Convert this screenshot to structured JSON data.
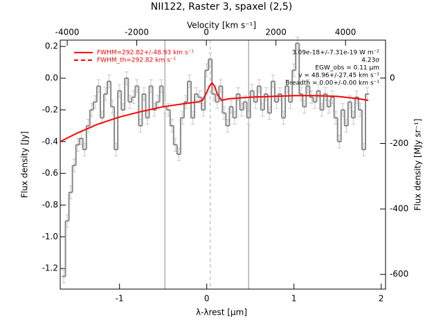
{
  "chart_data": {
    "type": "spectrum",
    "title": "NII122, Raster 3, spaxel (2,5)",
    "xlabel": "λ-λrest [μm]",
    "ylabel": "Flux density [Jy]",
    "x2label": "Velocity [km s⁻¹]",
    "y2label": "Flux density [MJy sr⁻¹]",
    "xlim": [
      -1.68,
      2.05
    ],
    "xticks": [
      -1,
      0,
      1,
      2
    ],
    "ylim": [
      -1.33,
      0.24
    ],
    "yticks": [
      0.2,
      {
        "value": 0,
        "label": "0.0"
      },
      -0.2,
      -0.4,
      -0.6,
      -0.8,
      {
        "value": -1,
        "label": "-1.0"
      },
      -1.2
    ],
    "x2lim": [
      -4200,
      5150
    ],
    "x2ticks": [
      -4000,
      -2000,
      0,
      2000,
      4000
    ],
    "y2lim": [
      -645,
      116
    ],
    "y2ticks": [
      0,
      -200,
      -400,
      -600
    ],
    "bin_width": 0.04,
    "spectrum": {
      "color": "#888888",
      "x": [
        -1.64,
        -1.6,
        -1.56,
        -1.52,
        -1.48,
        -1.44,
        -1.4,
        -1.36,
        -1.32,
        -1.28,
        -1.24,
        -1.2,
        -1.16,
        -1.12,
        -1.08,
        -1.04,
        -1.0,
        -0.96,
        -0.92,
        -0.88,
        -0.84,
        -0.8,
        -0.76,
        -0.72,
        -0.68,
        -0.64,
        -0.6,
        -0.56,
        -0.52,
        -0.48,
        -0.44,
        -0.4,
        -0.36,
        -0.32,
        -0.28,
        -0.24,
        -0.2,
        -0.16,
        -0.12,
        -0.08,
        -0.04,
        0.0,
        0.04,
        0.08,
        0.12,
        0.16,
        0.2,
        0.24,
        0.28,
        0.32,
        0.36,
        0.4,
        0.44,
        0.48,
        0.52,
        0.56,
        0.6,
        0.64,
        0.68,
        0.72,
        0.76,
        0.8,
        0.84,
        0.88,
        0.92,
        0.96,
        1.0,
        1.04,
        1.08,
        1.12,
        1.16,
        1.2,
        1.24,
        1.28,
        1.32,
        1.36,
        1.4,
        1.44,
        1.48,
        1.52,
        1.56,
        1.6,
        1.64,
        1.68,
        1.72,
        1.76,
        1.8,
        1.84
      ],
      "values": [
        -1.25,
        -0.9,
        -0.72,
        -0.55,
        -0.42,
        -0.38,
        -0.45,
        -0.3,
        -0.2,
        -0.15,
        -0.05,
        -0.25,
        -0.1,
        -0.02,
        -0.18,
        -0.45,
        -0.08,
        -0.2,
        0.0,
        -0.15,
        -0.12,
        -0.05,
        -0.3,
        -0.1,
        -0.25,
        -0.05,
        -0.2,
        -0.15,
        -0.05,
        -0.18,
        -0.2,
        -0.3,
        -0.42,
        -0.48,
        -0.25,
        -0.15,
        -0.02,
        -0.25,
        -0.1,
        -0.12,
        -0.2,
        0.05,
        0.12,
        -0.1,
        -0.15,
        -0.05,
        -0.22,
        -0.3,
        -0.18,
        -0.25,
        -0.1,
        -0.2,
        -0.15,
        -0.25,
        -0.08,
        -0.15,
        -0.05,
        -0.2,
        -0.1,
        -0.22,
        -0.02,
        -0.15,
        -0.1,
        -0.25,
        -0.05,
        -0.15,
        0.05,
        0.22,
        -0.1,
        -0.18,
        -0.05,
        -0.12,
        -0.15,
        -0.08,
        -0.2,
        -0.1,
        -0.18,
        -0.12,
        -0.25,
        -0.4,
        -0.2,
        -0.3,
        -0.15,
        -0.25,
        -0.12,
        -0.2,
        -0.45,
        -0.1
      ],
      "errors": [
        0.04,
        0.04,
        0.04,
        0.04,
        0.04,
        0.04,
        0.04,
        0.04,
        0.04,
        0.04,
        0.04,
        0.04,
        0.04,
        0.04,
        0.04,
        0.04,
        0.04,
        0.04,
        0.04,
        0.04,
        0.04,
        0.04,
        0.04,
        0.04,
        0.04,
        0.04,
        0.04,
        0.04,
        0.04,
        0.04,
        0.04,
        0.04,
        0.04,
        0.04,
        0.04,
        0.04,
        0.04,
        0.04,
        0.04,
        0.04,
        0.04,
        0.04,
        0.04,
        0.04,
        0.04,
        0.04,
        0.04,
        0.04,
        0.04,
        0.04,
        0.04,
        0.04,
        0.04,
        0.04,
        0.04,
        0.04,
        0.04,
        0.04,
        0.04,
        0.04,
        0.04,
        0.04,
        0.04,
        0.04,
        0.04,
        0.04,
        0.04,
        0.04,
        0.04,
        0.04,
        0.04,
        0.04,
        0.04,
        0.04,
        0.04,
        0.04,
        0.04,
        0.04,
        0.04,
        0.04,
        0.04,
        0.04,
        0.04,
        0.04,
        0.04,
        0.04,
        0.04,
        0.04
      ]
    },
    "series": [
      {
        "name": "FWHM=292.82+/-48.93 km s⁻¹",
        "color": "#ff0000",
        "dash": false,
        "x": [
          -1.68,
          -1.5,
          -1.25,
          -1.0,
          -0.75,
          -0.5,
          -0.25,
          -0.1,
          -0.05,
          0,
          0.03,
          0.06,
          0.09,
          0.12,
          0.17,
          0.25,
          0.5,
          0.75,
          1.0,
          1.25,
          1.5,
          1.75,
          1.85
        ],
        "values": [
          -0.4,
          -0.35,
          -0.29,
          -0.245,
          -0.21,
          -0.18,
          -0.16,
          -0.15,
          -0.14,
          -0.09,
          -0.05,
          -0.03,
          -0.05,
          -0.1,
          -0.14,
          -0.13,
          -0.12,
          -0.115,
          -0.11,
          -0.11,
          -0.115,
          -0.13,
          -0.14
        ]
      },
      {
        "name": "FWHM_th=292.82 km s⁻¹",
        "color": "#ff0000",
        "dash": true,
        "x": [],
        "values": []
      }
    ],
    "vlines": [
      -0.48,
      0.48
    ],
    "line_center": 0.04,
    "annotations": [
      "3.09e-18+/-7.31e-19 W m⁻²",
      "4.23σ",
      "EGW_obs = 0.11 μm",
      "v = 48.96+/-27.45 km s⁻¹",
      "Breadth = 0.00+/-0.00 km s⁻¹"
    ]
  }
}
